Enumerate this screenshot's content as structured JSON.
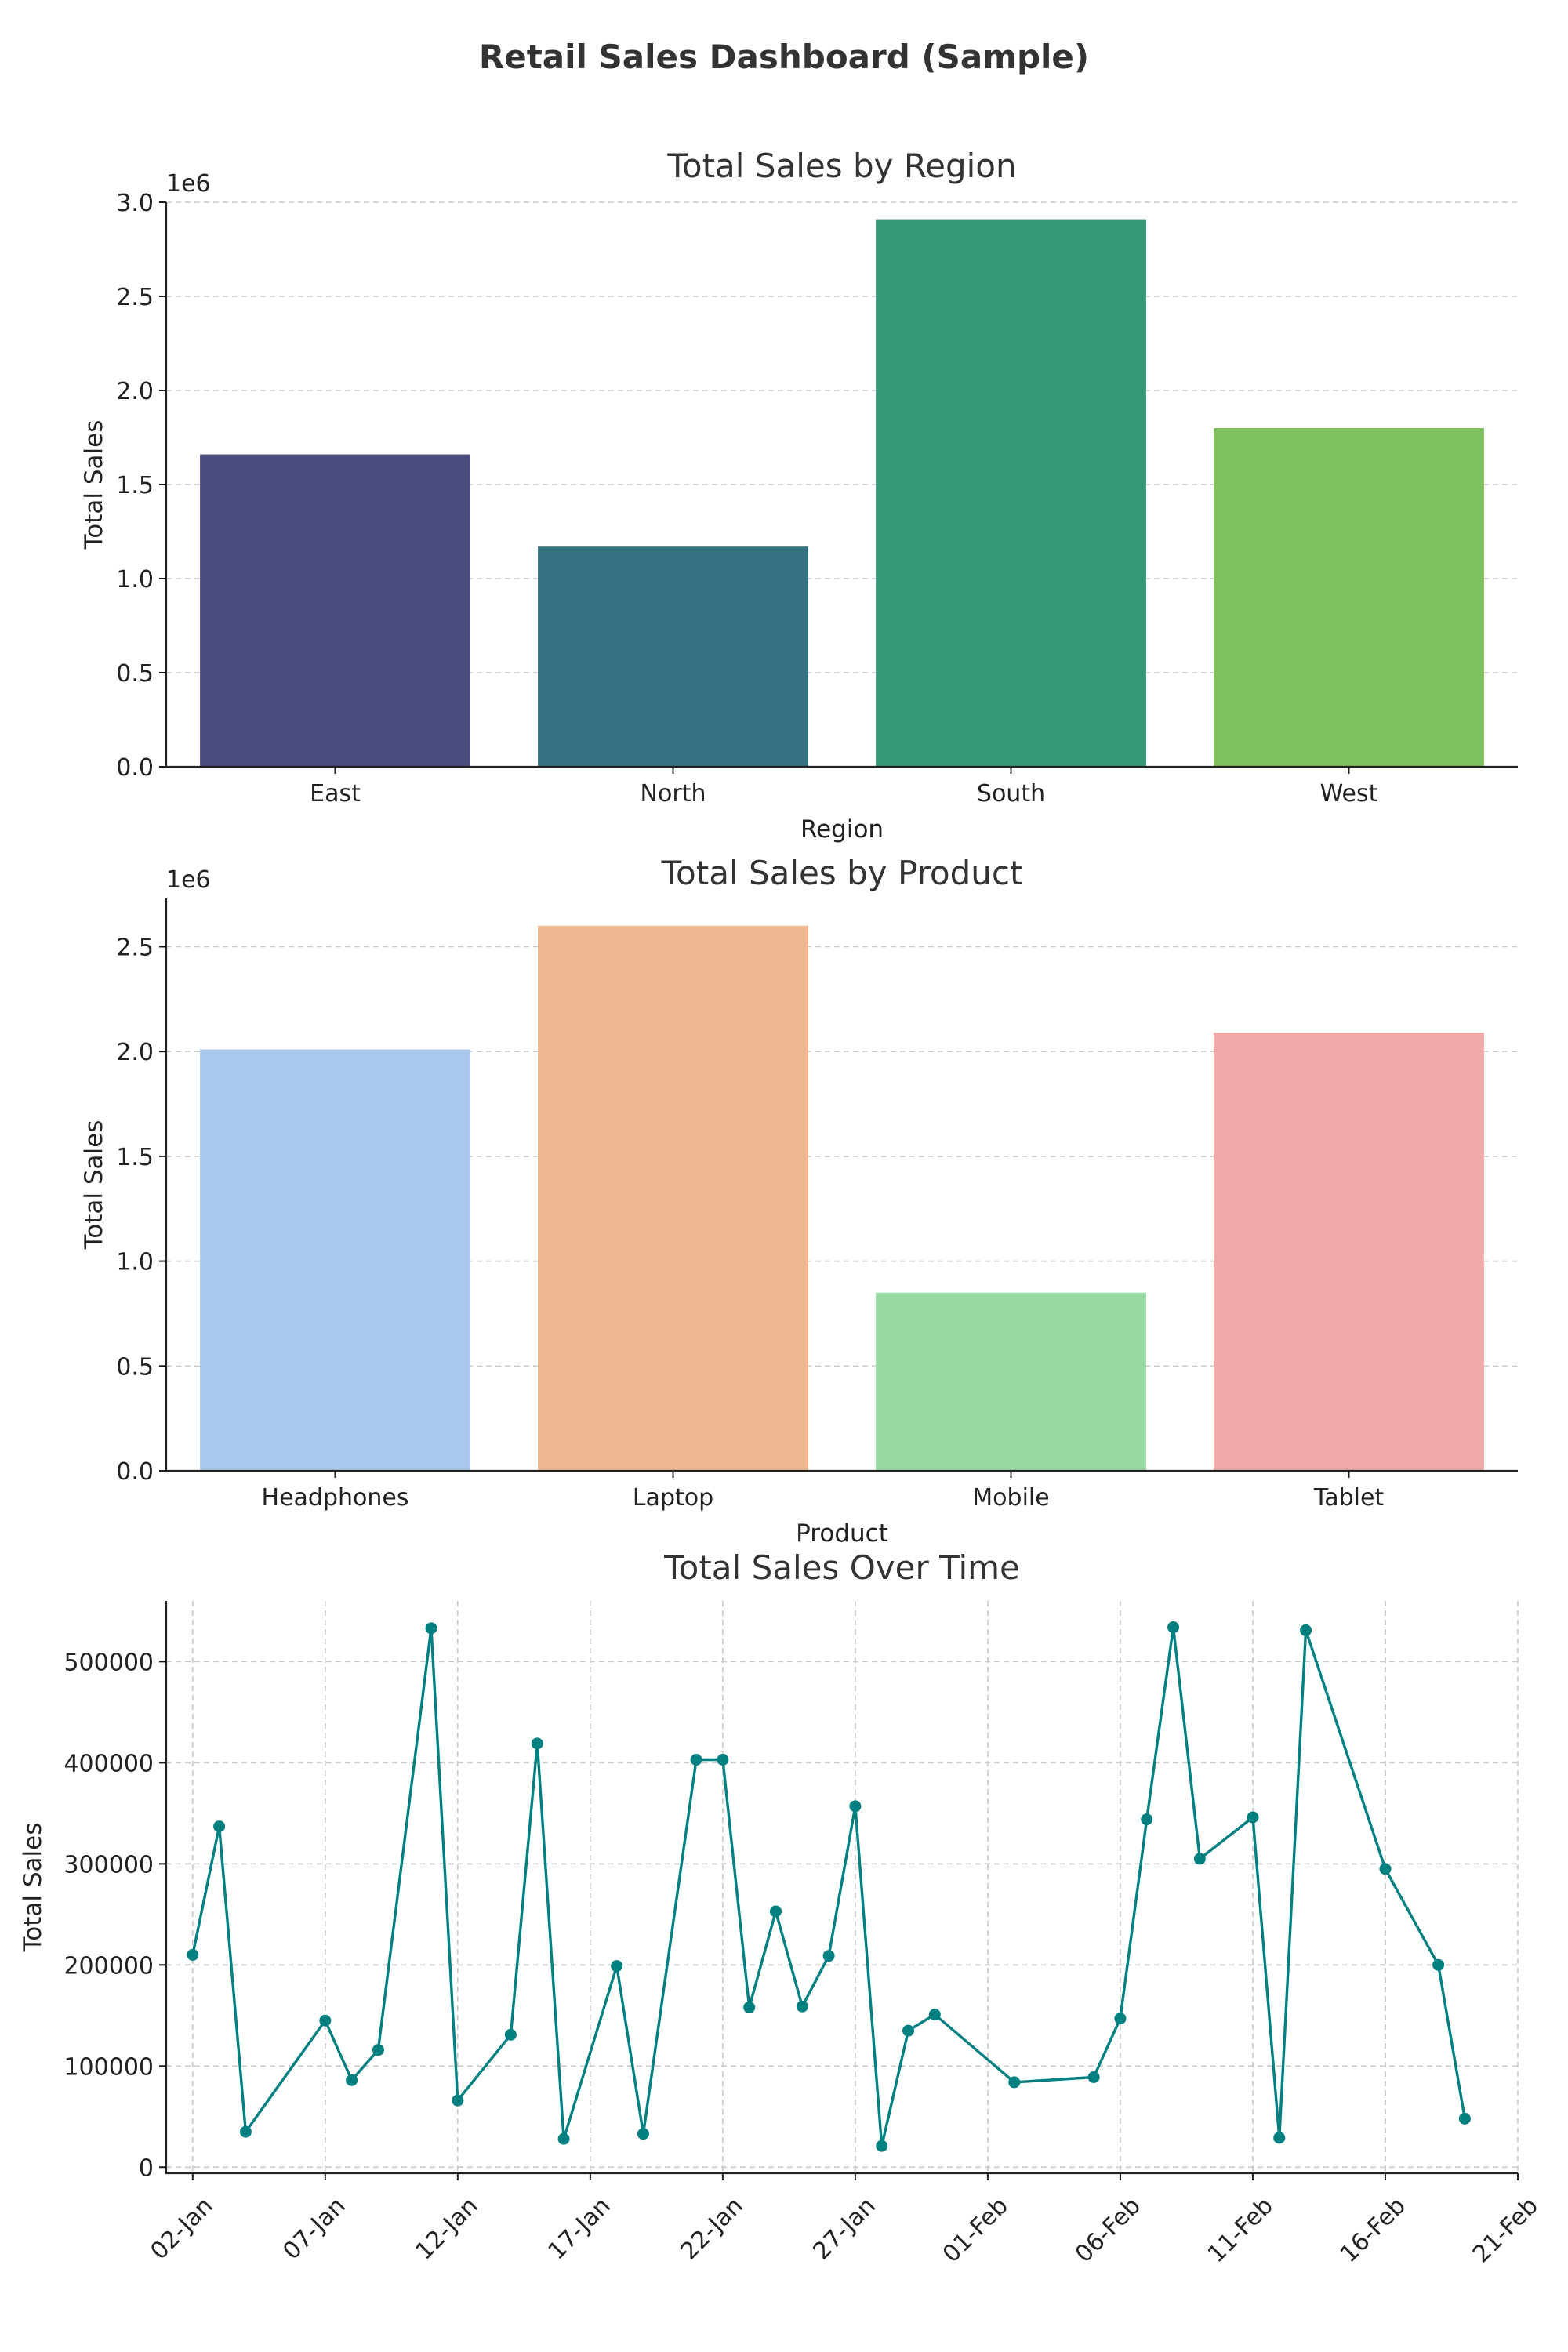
{
  "dashboard_title": "Retail Sales Dashboard (Sample)",
  "chart_data": [
    {
      "id": "region",
      "type": "bar",
      "title": "Total Sales by Region",
      "xlabel": "Region",
      "ylabel": "Total Sales",
      "offset_label": "1e6",
      "categories": [
        "East",
        "North",
        "South",
        "West"
      ],
      "values": [
        1660000,
        1170000,
        2910000,
        1800000
      ],
      "colors": [
        "#4a4a7d",
        "#367181",
        "#349879",
        "#80c15f"
      ],
      "ylim": [
        0,
        3000000
      ],
      "yticks": [
        0,
        500000,
        1000000,
        1500000,
        2000000,
        2500000,
        3000000
      ],
      "ytick_labels": [
        "0.0",
        "0.5",
        "1.0",
        "1.5",
        "2.0",
        "2.5",
        "3.0"
      ],
      "grid": true
    },
    {
      "id": "product",
      "type": "bar",
      "title": "Total Sales by Product",
      "xlabel": "Product",
      "ylabel": "Total Sales",
      "offset_label": "1e6",
      "categories": [
        "Headphones",
        "Laptop",
        "Mobile",
        "Tablet"
      ],
      "values": [
        2010000,
        2600000,
        850000,
        2090000
      ],
      "colors": [
        "#aac8eb",
        "#f0b890",
        "#98d9a3",
        "#f1aaa8"
      ],
      "ylim": [
        0,
        2730000
      ],
      "yticks": [
        0,
        500000,
        1000000,
        1500000,
        2000000,
        2500000
      ],
      "ytick_labels": [
        "0.0",
        "0.5",
        "1.0",
        "1.5",
        "2.0",
        "2.5"
      ],
      "grid": true
    },
    {
      "id": "time",
      "type": "line",
      "title": "Total Sales Over Time",
      "xlabel": "",
      "ylabel": "Total Sales",
      "color": "#008080",
      "x": [
        "2024-01-02",
        "2024-01-03",
        "2024-01-04",
        "2024-01-07",
        "2024-01-08",
        "2024-01-09",
        "2024-01-11",
        "2024-01-12",
        "2024-01-14",
        "2024-01-15",
        "2024-01-16",
        "2024-01-18",
        "2024-01-19",
        "2024-01-21",
        "2024-01-22",
        "2024-01-23",
        "2024-01-24",
        "2024-01-25",
        "2024-01-26",
        "2024-01-27",
        "2024-01-28",
        "2024-01-29",
        "2024-01-30",
        "2024-02-02",
        "2024-02-05",
        "2024-02-06",
        "2024-02-07",
        "2024-02-08",
        "2024-02-09",
        "2024-02-11",
        "2024-02-12",
        "2024-02-13",
        "2024-02-16",
        "2024-02-18",
        "2024-02-19"
      ],
      "y": [
        210000,
        337000,
        35000,
        145000,
        86000,
        116000,
        533000,
        66000,
        131000,
        419000,
        28000,
        199000,
        33000,
        403000,
        403000,
        158000,
        253000,
        159000,
        209000,
        357000,
        21000,
        135000,
        151000,
        84000,
        89000,
        147000,
        344000,
        534000,
        305000,
        346000,
        29000,
        531000,
        295000,
        200000,
        48000
      ],
      "xlim": [
        "2024-01-01",
        "2024-02-21"
      ],
      "xticks": [
        "2024-01-02",
        "2024-01-07",
        "2024-01-12",
        "2024-01-17",
        "2024-01-22",
        "2024-01-27",
        "2024-02-01",
        "2024-02-06",
        "2024-02-11",
        "2024-02-16",
        "2024-02-21"
      ],
      "xtick_labels": [
        "02-Jan",
        "07-Jan",
        "12-Jan",
        "17-Jan",
        "22-Jan",
        "27-Jan",
        "01-Feb",
        "06-Feb",
        "11-Feb",
        "16-Feb",
        "21-Feb"
      ],
      "ylim": [
        -6000,
        560000
      ],
      "yticks": [
        0,
        100000,
        200000,
        300000,
        400000,
        500000
      ],
      "ytick_labels": [
        "0",
        "100000",
        "200000",
        "300000",
        "400000",
        "500000"
      ],
      "grid": true
    }
  ]
}
